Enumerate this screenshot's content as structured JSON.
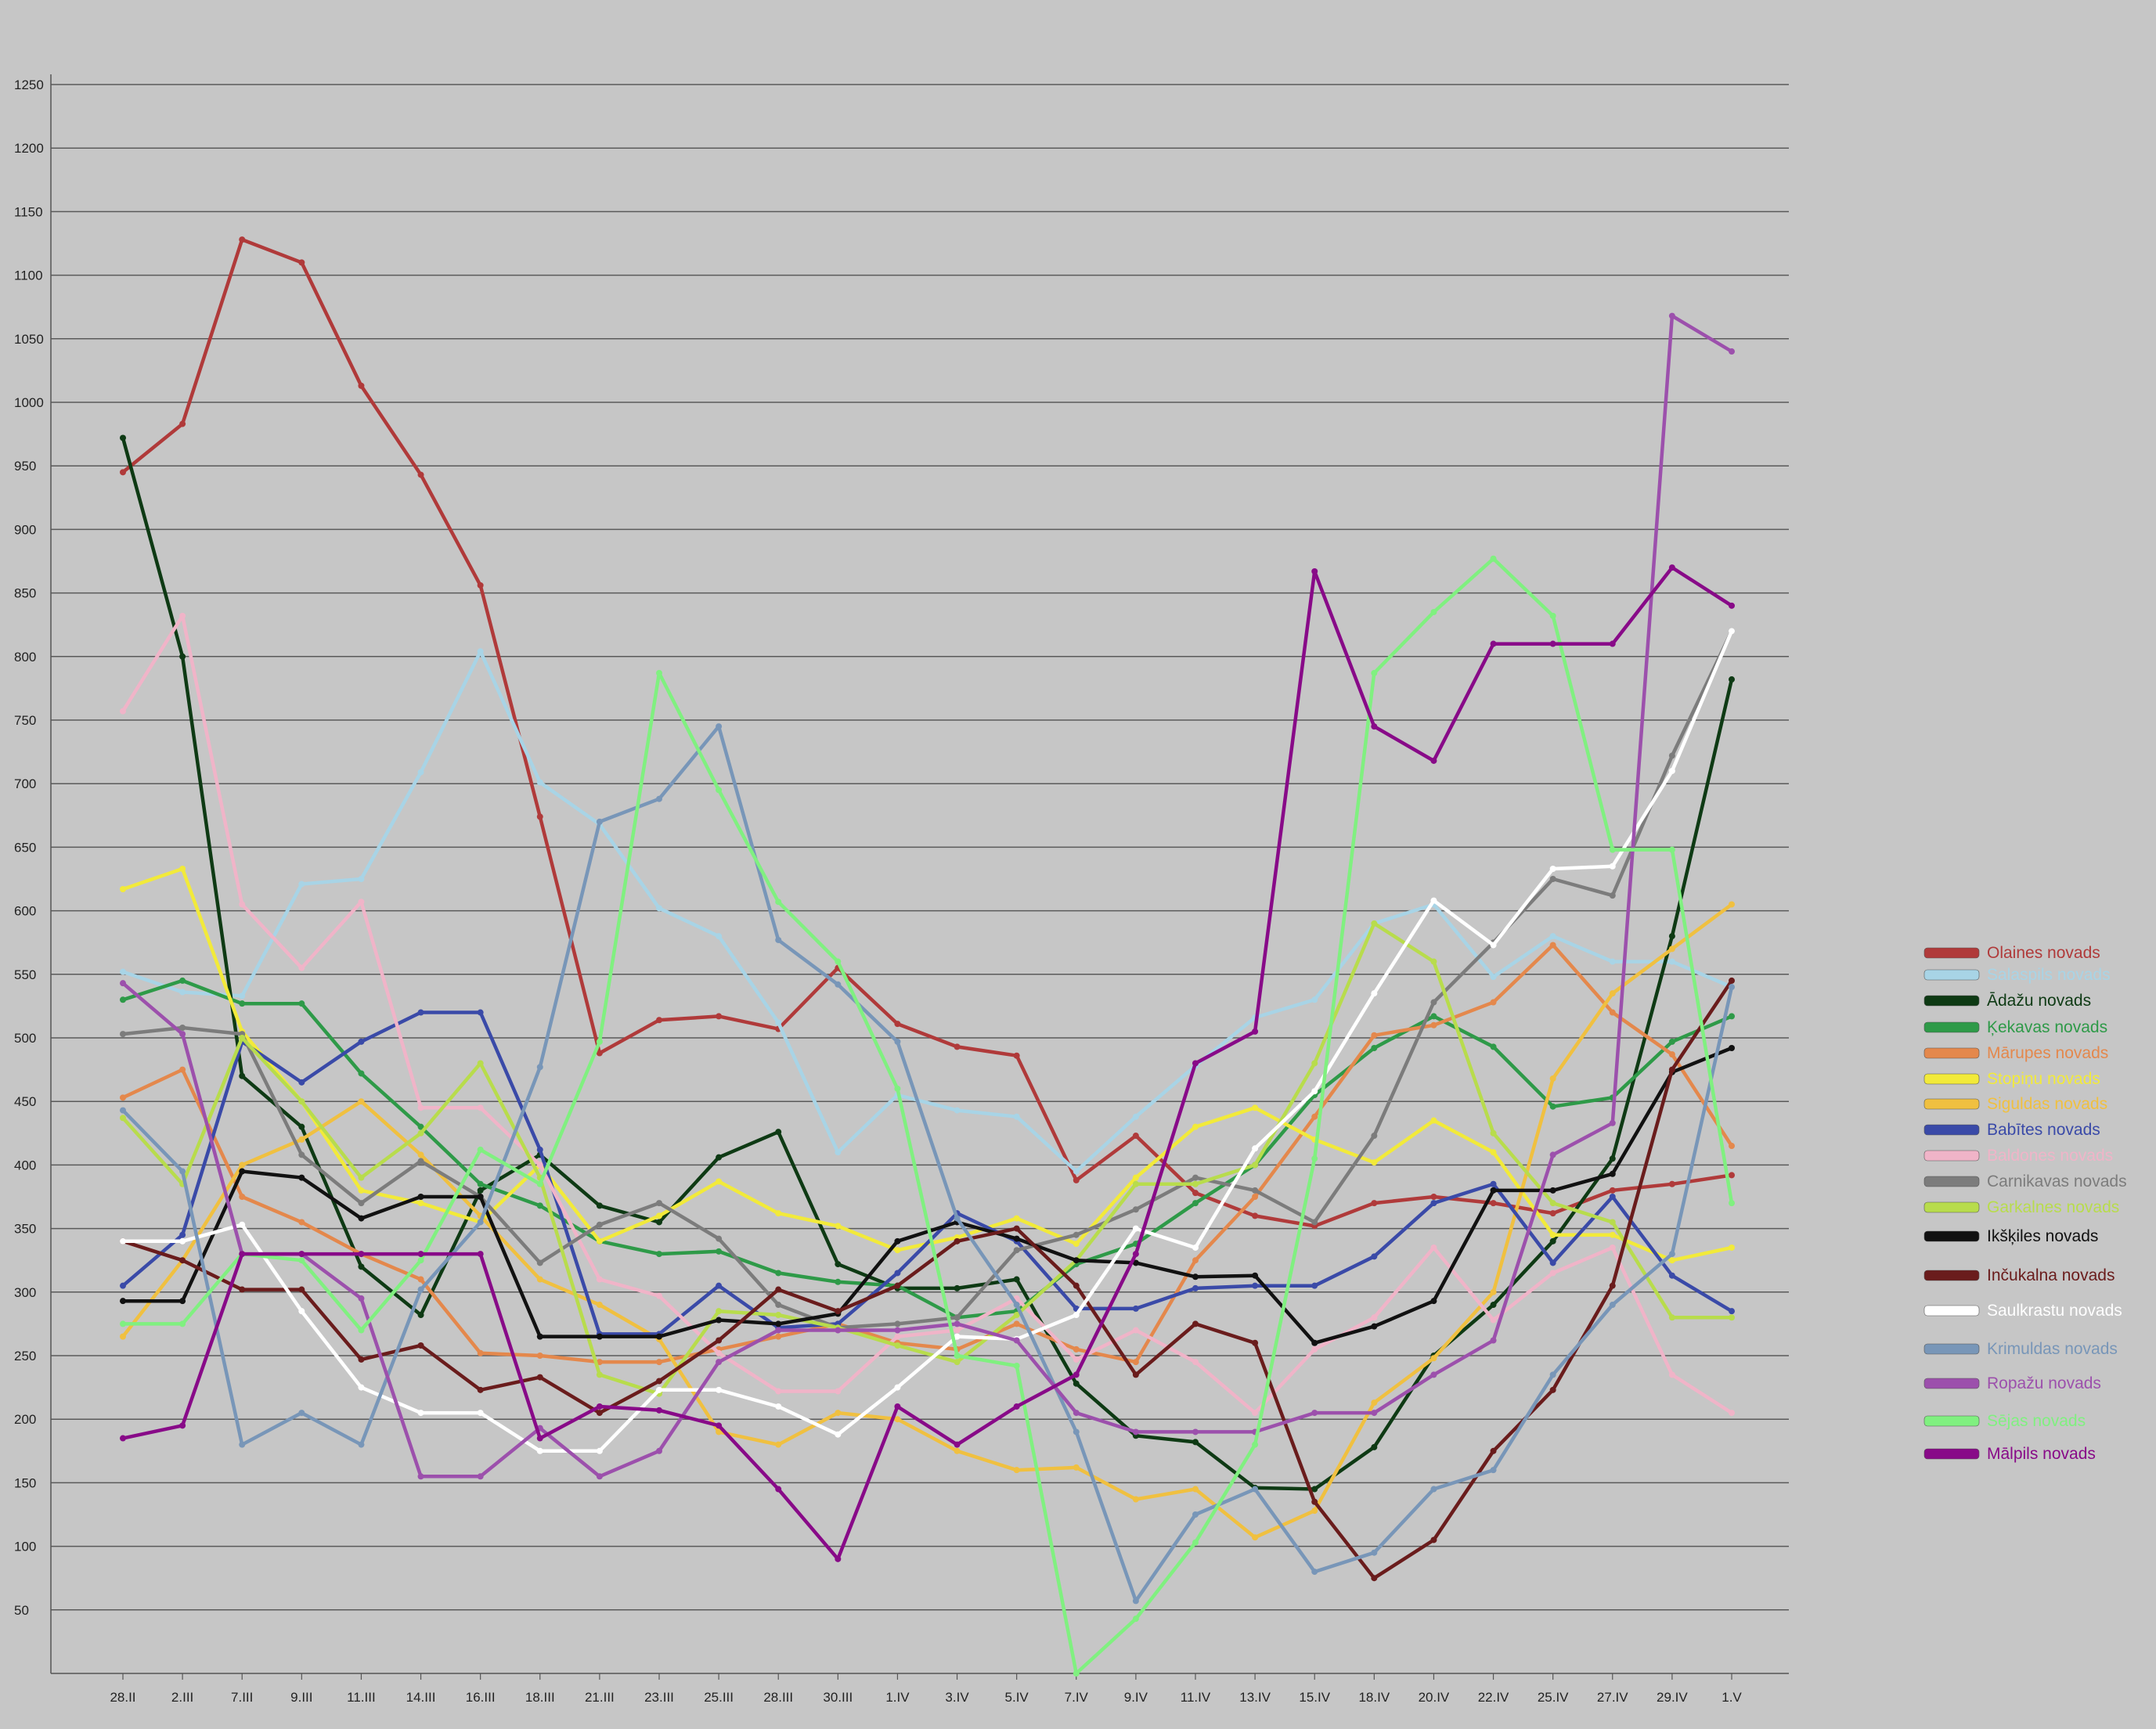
{
  "chart_data": {
    "type": "line",
    "title": "",
    "xlabel": "",
    "ylabel": "",
    "ylim": [
      0,
      1250
    ],
    "yticks": [
      50,
      100,
      150,
      200,
      250,
      300,
      350,
      400,
      450,
      500,
      550,
      600,
      650,
      700,
      750,
      800,
      850,
      900,
      950,
      1000,
      1050,
      1100,
      1150,
      1200,
      1250
    ],
    "grid": true,
    "legend_position": "right",
    "categories": [
      "28.II",
      "2.III",
      "7.III",
      "9.III",
      "11.III",
      "14.III",
      "16.III",
      "18.III",
      "21.III",
      "23.III",
      "25.III",
      "28.III",
      "30.III",
      "1.IV",
      "3.IV",
      "5.IV",
      "7.IV",
      "9.IV",
      "11.IV",
      "13.IV",
      "15.IV",
      "18.IV",
      "20.IV",
      "22.IV",
      "25.IV",
      "27.IV",
      "29.IV",
      "1.V"
    ],
    "series": [
      {
        "name": "Olaines novads",
        "color": "#b03a3a",
        "values": [
          945,
          983,
          1128,
          1110,
          1013,
          943,
          856,
          674,
          488,
          514,
          517,
          507,
          555,
          511,
          493,
          486,
          388,
          423,
          378,
          360,
          352,
          370,
          375,
          370,
          362,
          380,
          385,
          392
        ]
      },
      {
        "name": "Salaspils novads",
        "color": "#a8d4e6",
        "values": [
          552,
          536,
          533,
          621,
          625,
          709,
          804,
          701,
          668,
          602,
          580,
          512,
          410,
          455,
          443,
          438,
          395,
          438,
          478,
          516,
          530,
          590,
          605,
          548,
          580,
          560,
          560,
          540
        ]
      },
      {
        "name": "Ādažu novads",
        "color": "#0e3a14",
        "values": [
          972,
          800,
          470,
          430,
          320,
          282,
          380,
          408,
          368,
          355,
          406,
          426,
          322,
          303,
          303,
          310,
          228,
          187,
          182,
          146,
          145,
          178,
          250,
          290,
          340,
          405,
          580,
          782
        ]
      },
      {
        "name": "Ķekavas novads",
        "color": "#2e9a48",
        "values": [
          530,
          545,
          527,
          527,
          472,
          430,
          385,
          368,
          340,
          330,
          332,
          315,
          308,
          305,
          280,
          285,
          322,
          338,
          370,
          400,
          455,
          492,
          517,
          493,
          446,
          453,
          497,
          517
        ]
      },
      {
        "name": "Mārupes novads",
        "color": "#e4884c",
        "values": [
          453,
          475,
          375,
          355,
          330,
          310,
          252,
          250,
          245,
          245,
          255,
          265,
          275,
          260,
          255,
          275,
          255,
          245,
          325,
          375,
          438,
          502,
          510,
          528,
          573,
          520,
          487,
          415
        ]
      },
      {
        "name": "Stopiņu novads",
        "color": "#f2ea3a",
        "values": [
          617,
          633,
          505,
          450,
          380,
          370,
          355,
          400,
          340,
          360,
          387,
          362,
          352,
          333,
          343,
          358,
          338,
          390,
          430,
          445,
          420,
          402,
          435,
          410,
          345,
          345,
          325,
          335
        ]
      },
      {
        "name": "Siguldas novads",
        "color": "#f0c040",
        "values": [
          265,
          325,
          400,
          420,
          450,
          408,
          360,
          310,
          290,
          263,
          190,
          180,
          205,
          200,
          175,
          160,
          162,
          137,
          145,
          107,
          128,
          213,
          248,
          300,
          468,
          535,
          570,
          605
        ]
      },
      {
        "name": "Babītes novads",
        "color": "#3a4aa8",
        "values": [
          305,
          345,
          497,
          465,
          497,
          520,
          520,
          412,
          267,
          267,
          305,
          272,
          275,
          315,
          362,
          340,
          287,
          287,
          303,
          305,
          305,
          328,
          370,
          385,
          323,
          375,
          313,
          285
        ]
      },
      {
        "name": "Baldones novads",
        "color": "#f0b4c8",
        "values": [
          757,
          832,
          605,
          555,
          607,
          445,
          445,
          400,
          310,
          297,
          252,
          222,
          222,
          265,
          270,
          295,
          247,
          270,
          245,
          205,
          255,
          280,
          335,
          278,
          315,
          335,
          235,
          205
        ]
      },
      {
        "name": "Carnikavas novads",
        "color": "#7c7c7c",
        "values": [
          503,
          508,
          503,
          408,
          370,
          403,
          375,
          323,
          353,
          370,
          342,
          290,
          272,
          275,
          280,
          333,
          345,
          365,
          390,
          380,
          355,
          423,
          528,
          575,
          625,
          612,
          722,
          820
        ]
      },
      {
        "name": "Garkalnes novads",
        "color": "#b8dc4c",
        "values": [
          437,
          385,
          500,
          450,
          390,
          425,
          480,
          390,
          235,
          220,
          285,
          282,
          272,
          258,
          245,
          282,
          325,
          385,
          385,
          400,
          480,
          590,
          560,
          425,
          370,
          355,
          280,
          280
        ]
      },
      {
        "name": "Ikšķiles novads",
        "color": "#111111",
        "values": [
          293,
          293,
          395,
          390,
          358,
          375,
          375,
          265,
          265,
          265,
          278,
          275,
          283,
          340,
          355,
          342,
          325,
          323,
          312,
          313,
          260,
          273,
          293,
          380,
          380,
          393,
          473,
          492
        ]
      },
      {
        "name": "Inčukalna novads",
        "color": "#6a1c1c",
        "values": [
          340,
          325,
          302,
          302,
          247,
          258,
          223,
          233,
          205,
          230,
          262,
          302,
          285,
          305,
          340,
          350,
          305,
          235,
          275,
          260,
          135,
          75,
          105,
          175,
          223,
          305,
          475,
          545
        ]
      },
      {
        "name": "Saulkrastu novads",
        "color": "#ffffff",
        "values": [
          340,
          340,
          353,
          285,
          225,
          205,
          205,
          175,
          175,
          223,
          223,
          210,
          188,
          225,
          265,
          263,
          282,
          350,
          335,
          413,
          458,
          535,
          608,
          573,
          633,
          635,
          710,
          820
        ]
      },
      {
        "name": "Krimuldas novads",
        "color": "#7896b8",
        "values": [
          443,
          395,
          180,
          205,
          180,
          302,
          355,
          477,
          670,
          688,
          745,
          577,
          542,
          497,
          358,
          290,
          190,
          57,
          125,
          145,
          80,
          95,
          145,
          160,
          235,
          290,
          330,
          540
        ]
      },
      {
        "name": "Ropažu novads",
        "color": "#9c50ac",
        "values": [
          543,
          503,
          330,
          330,
          295,
          155,
          155,
          193,
          155,
          175,
          245,
          270,
          270,
          270,
          275,
          262,
          205,
          190,
          190,
          190,
          205,
          205,
          235,
          262,
          408,
          433,
          1068,
          1040
        ]
      },
      {
        "name": "Sējas novads",
        "color": "#80f080",
        "values": [
          275,
          275,
          330,
          325,
          270,
          325,
          412,
          385,
          497,
          787,
          695,
          607,
          560,
          460,
          250,
          242,
          0,
          43,
          103,
          180,
          405,
          787,
          835,
          877,
          832,
          648,
          648,
          370
        ]
      },
      {
        "name": "Mālpils novads",
        "color": "#880a88",
        "values": [
          185,
          195,
          330,
          330,
          330,
          330,
          330,
          185,
          210,
          207,
          195,
          145,
          90,
          210,
          180,
          210,
          235,
          330,
          480,
          505,
          867,
          745,
          718,
          810,
          810,
          810,
          870,
          840
        ]
      }
    ]
  }
}
